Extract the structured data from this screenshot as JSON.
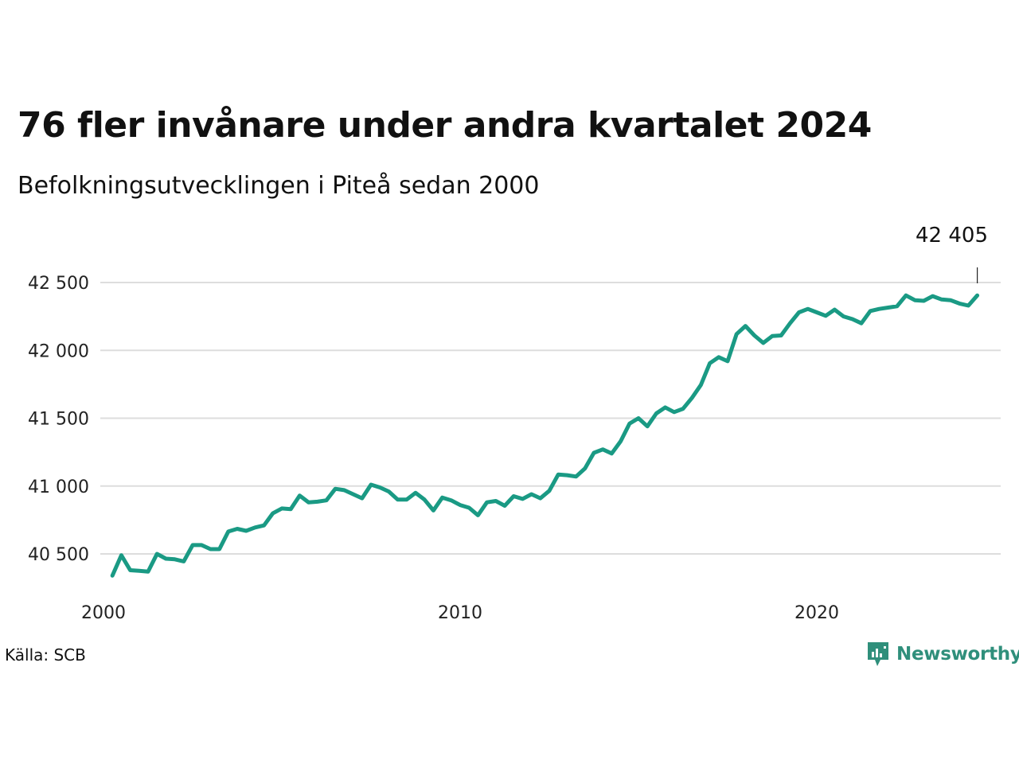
{
  "header": {
    "title": "76 fler invånare under andra kvartalet 2024",
    "subtitle": "Befolkningsutvecklingen i Piteå sedan 2000"
  },
  "footer": {
    "source": "Källa: SCB",
    "logo_text": "Newsworthy"
  },
  "colors": {
    "line": "#1a9a84",
    "logo": "#2f8f7b",
    "grid": "#dddddd"
  },
  "chart_data": {
    "type": "line",
    "title": "76 fler invånare under andra kvartalet 2024",
    "subtitle": "Befolkningsutvecklingen i Piteå sedan 2000",
    "xlabel": "",
    "ylabel": "",
    "xlim": [
      2000,
      2025
    ],
    "ylim": [
      40250,
      42750
    ],
    "x_ticks": [
      2000,
      2010,
      2020
    ],
    "x_tick_labels": [
      "2000",
      "2010",
      "2020"
    ],
    "y_ticks": [
      40500,
      41000,
      41500,
      42000,
      42500
    ],
    "y_tick_labels": [
      "40 500",
      "41 000",
      "41 500",
      "42 000",
      "42 500"
    ],
    "grid": "horizontal",
    "annotation": {
      "x": 2024.5,
      "y": 42405,
      "label": "42 405"
    },
    "series": [
      {
        "x": [
          2000.25,
          2000.5,
          2000.75,
          2001,
          2001.25,
          2001.5,
          2001.75,
          2002,
          2002.25,
          2002.5,
          2002.75,
          2003,
          2003.25,
          2003.5,
          2003.75,
          2004,
          2004.25,
          2004.5,
          2004.75,
          2005,
          2005.25,
          2005.5,
          2005.75,
          2006,
          2006.25,
          2006.5,
          2006.75,
          2007,
          2007.25,
          2007.5,
          2007.75,
          2008,
          2008.25,
          2008.5,
          2008.75,
          2009,
          2009.25,
          2009.5,
          2009.75,
          2010,
          2010.25,
          2010.5,
          2010.75,
          2011,
          2011.25,
          2011.5,
          2011.75,
          2012,
          2012.25,
          2012.5,
          2012.75,
          2013,
          2013.25,
          2013.5,
          2013.75,
          2014,
          2014.25,
          2014.5,
          2014.75,
          2015,
          2015.25,
          2015.5,
          2015.75,
          2016,
          2016.25,
          2016.5,
          2016.75,
          2017,
          2017.25,
          2017.5,
          2017.75,
          2018,
          2018.25,
          2018.5,
          2018.75,
          2019,
          2019.25,
          2019.5,
          2019.75,
          2020,
          2020.25,
          2020.5,
          2020.75,
          2021,
          2021.25,
          2021.5,
          2021.75,
          2022,
          2022.25,
          2022.5,
          2022.75,
          2023,
          2023.25,
          2023.5,
          2023.75,
          2024,
          2024.25,
          2024.5
        ],
        "y": [
          40340,
          40490,
          40380,
          40375,
          40370,
          40500,
          40465,
          40460,
          40445,
          40565,
          40565,
          40535,
          40535,
          40665,
          40685,
          40670,
          40695,
          40710,
          40800,
          40835,
          40830,
          40930,
          40880,
          40885,
          40895,
          40980,
          40970,
          40940,
          40910,
          41010,
          40990,
          40960,
          40900,
          40900,
          40950,
          40900,
          40820,
          40915,
          40895,
          40860,
          40840,
          40785,
          40880,
          40890,
          40855,
          40925,
          40905,
          40940,
          40910,
          40965,
          41085,
          41080,
          41070,
          41130,
          41245,
          41270,
          41240,
          41330,
          41460,
          41500,
          41440,
          41535,
          41580,
          41545,
          41570,
          41650,
          41745,
          41905,
          41950,
          41920,
          42120,
          42180,
          42110,
          42055,
          42105,
          42110,
          42200,
          42280,
          42305,
          42280,
          42255,
          42300,
          42250,
          42230,
          42200,
          42290,
          42305,
          42315,
          42325,
          42405,
          42370,
          42365,
          42400,
          42375,
          42370,
          42345,
          42330,
          42405
        ]
      }
    ]
  }
}
